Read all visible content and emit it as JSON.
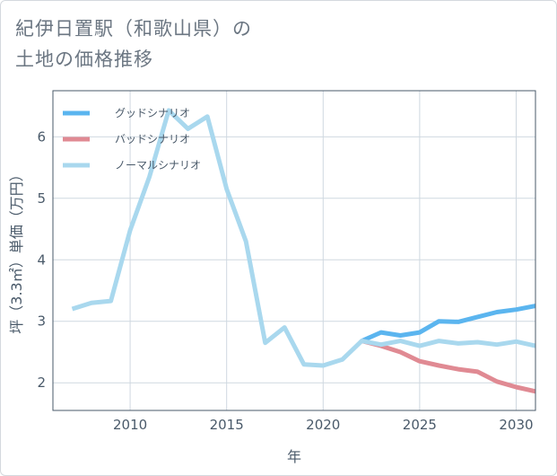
{
  "title": {
    "line1": "紀伊日置駅（和歌山県）の",
    "line2": "土地の価格推移"
  },
  "chart_data": {
    "type": "line",
    "xlabel": "年",
    "ylabel": "坪（3.3㎡）単価（万円）",
    "xlim": [
      2006,
      2031
    ],
    "ylim": [
      1.55,
      6.75
    ],
    "xticks": [
      2010,
      2015,
      2020,
      2025,
      2030
    ],
    "yticks": [
      2,
      3,
      4,
      5,
      6
    ],
    "grid": true,
    "legend_position": "top-left",
    "series": [
      {
        "name": "グッドシナリオ",
        "color": "#5bb5ef",
        "x": [
          2022,
          2023,
          2024,
          2025,
          2026,
          2027,
          2028,
          2029,
          2030,
          2031
        ],
        "values": [
          2.68,
          2.82,
          2.77,
          2.82,
          3.0,
          2.99,
          3.07,
          3.15,
          3.19,
          3.25
        ]
      },
      {
        "name": "バッドシナリオ",
        "color": "#e08a93",
        "x": [
          2022,
          2023,
          2024,
          2025,
          2026,
          2027,
          2028,
          2029,
          2030,
          2031
        ],
        "values": [
          2.68,
          2.6,
          2.5,
          2.35,
          2.28,
          2.22,
          2.18,
          2.02,
          1.93,
          1.86
        ]
      },
      {
        "name": "ノーマルシナリオ",
        "color": "#a9d8ee",
        "x": [
          2007,
          2008,
          2009,
          2010,
          2011,
          2012,
          2013,
          2014,
          2015,
          2016,
          2017,
          2018,
          2019,
          2020,
          2021,
          2022,
          2023,
          2024,
          2025,
          2026,
          2027,
          2028,
          2029,
          2030,
          2031
        ],
        "values": [
          3.2,
          3.3,
          3.33,
          4.48,
          5.35,
          6.43,
          6.13,
          6.33,
          5.15,
          4.3,
          2.65,
          2.9,
          2.3,
          2.28,
          2.38,
          2.68,
          2.62,
          2.68,
          2.6,
          2.68,
          2.64,
          2.66,
          2.62,
          2.67,
          2.6
        ]
      }
    ]
  }
}
